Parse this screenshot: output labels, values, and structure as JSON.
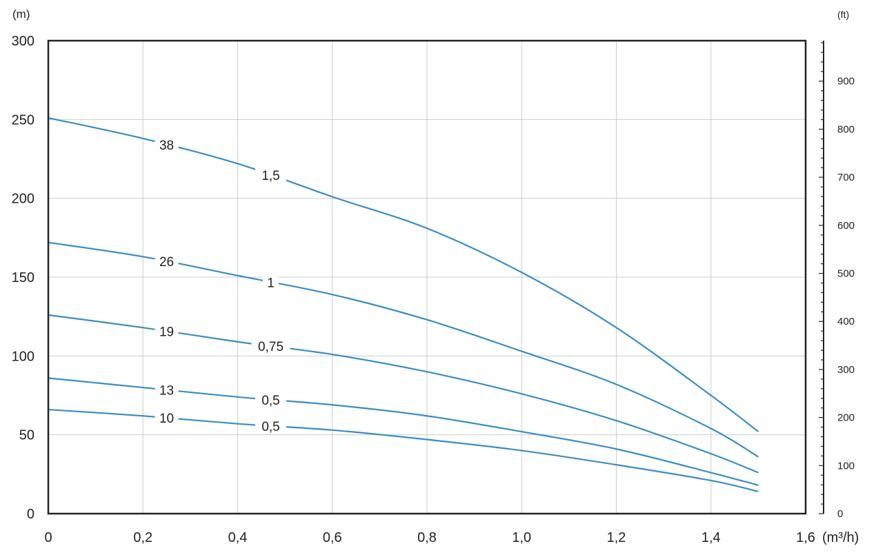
{
  "chart_data": {
    "type": "line",
    "title": "",
    "left_axis": {
      "unit": "(m)",
      "range": [
        0,
        300
      ],
      "ticks": [
        0,
        50,
        100,
        150,
        200,
        250,
        300
      ],
      "tick_labels": [
        "0",
        "50",
        "100",
        "150",
        "200",
        "250",
        "300"
      ]
    },
    "right_axis": {
      "unit": "(ft)",
      "ticks": [
        0,
        100,
        200,
        300,
        400,
        500,
        600,
        700,
        800,
        900
      ],
      "tick_labels": [
        "0",
        "100",
        "200",
        "300",
        "400",
        "500",
        "600",
        "700",
        "800",
        "900"
      ]
    },
    "x_axis": {
      "unit": "(m³/h)",
      "range": [
        0,
        1.6
      ],
      "ticks": [
        0,
        0.2,
        0.4,
        0.6,
        0.8,
        1.0,
        1.2,
        1.4,
        1.6
      ],
      "tick_labels": [
        "0",
        "0,2",
        "0,4",
        "0,6",
        "0,8",
        "1,0",
        "1,2",
        "1,4",
        "1,6"
      ]
    },
    "grid": true,
    "line_color": "#3a8cc4",
    "series": [
      {
        "label_a": "38",
        "label_b": "1,5",
        "x": [
          0,
          0.2,
          0.4,
          0.6,
          0.8,
          1.0,
          1.2,
          1.4,
          1.5
        ],
        "y": [
          251,
          238,
          222,
          201,
          181,
          153,
          118,
          75,
          52
        ],
        "label_a_x": 0.25,
        "label_b_x": 0.47
      },
      {
        "label_a": "26",
        "label_b": "1",
        "x": [
          0,
          0.2,
          0.4,
          0.6,
          0.8,
          1.0,
          1.2,
          1.4,
          1.5
        ],
        "y": [
          172,
          163,
          151,
          139,
          123,
          103,
          82,
          54,
          36
        ],
        "label_a_x": 0.25,
        "label_b_x": 0.47
      },
      {
        "label_a": "19",
        "label_b": "0,75",
        "x": [
          0,
          0.2,
          0.4,
          0.6,
          0.8,
          1.0,
          1.2,
          1.4,
          1.5
        ],
        "y": [
          126,
          118,
          109,
          101,
          90,
          76,
          59,
          38,
          26
        ],
        "label_a_x": 0.25,
        "label_b_x": 0.47
      },
      {
        "label_a": "13",
        "label_b": "0,5",
        "x": [
          0,
          0.2,
          0.4,
          0.6,
          0.8,
          1.0,
          1.2,
          1.4,
          1.5
        ],
        "y": [
          86,
          80,
          74,
          69,
          62,
          52,
          41,
          26,
          18
        ],
        "label_a_x": 0.25,
        "label_b_x": 0.47
      },
      {
        "label_a": "10",
        "label_b": "0,5",
        "x": [
          0,
          0.2,
          0.4,
          0.6,
          0.8,
          1.0,
          1.2,
          1.4,
          1.5
        ],
        "y": [
          66,
          62,
          57,
          53,
          47,
          40,
          31,
          21,
          14
        ],
        "label_a_x": 0.25,
        "label_b_x": 0.47
      }
    ]
  }
}
